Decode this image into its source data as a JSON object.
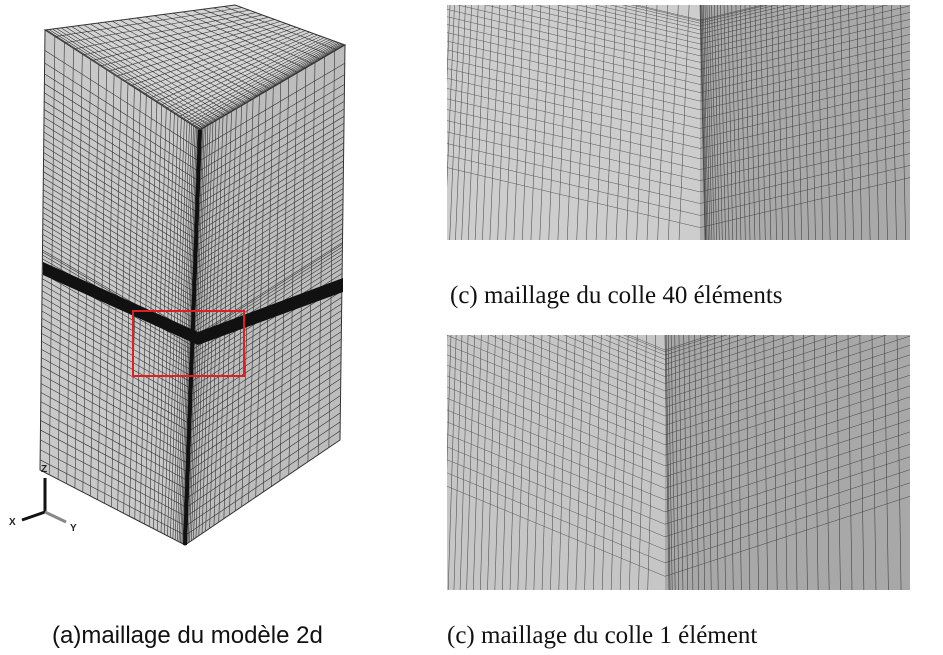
{
  "figure": {
    "panel_a": {
      "caption": "(a)maillage du modèle 2d",
      "axes_triad": {
        "z": "Z",
        "x": "X",
        "y": "Y"
      }
    },
    "panel_c_top": {
      "caption": "(c)   maillage du colle 40 éléments"
    },
    "panel_c_bottom": {
      "caption": "(c) maillage du colle 1 élément"
    }
  }
}
